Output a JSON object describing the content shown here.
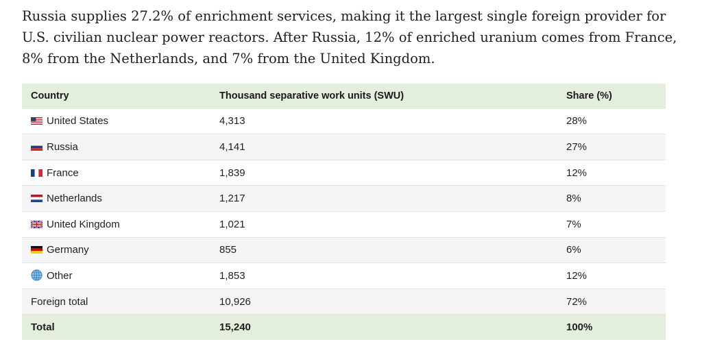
{
  "intro_text": "Russia supplies 27.2% of enrichment services, making it the largest single foreign provider for U.S. civilian nuclear power reactors. After Russia, 12% of enriched uranium comes from France, 8% from the Netherlands, and 7% from the United Kingdom.",
  "table": {
    "headers": [
      "Country",
      "Thousand separative work units (SWU)",
      "Share (%)"
    ],
    "rows": [
      {
        "country": "United States",
        "swu": "4,313",
        "share": "28%",
        "icon": "us-flag-icon"
      },
      {
        "country": "Russia",
        "swu": "4,141",
        "share": "27%",
        "icon": "russia-flag-icon"
      },
      {
        "country": "France",
        "swu": "1,839",
        "share": "12%",
        "icon": "france-flag-icon"
      },
      {
        "country": "Netherlands",
        "swu": "1,217",
        "share": "8%",
        "icon": "netherlands-flag-icon"
      },
      {
        "country": "United Kingdom",
        "swu": "1,021",
        "share": "7%",
        "icon": "uk-flag-icon"
      },
      {
        "country": "Germany",
        "swu": "855",
        "share": "6%",
        "icon": "germany-flag-icon"
      },
      {
        "country": "Other",
        "swu": "1,853",
        "share": "12%",
        "icon": "globe-icon"
      },
      {
        "country": "Foreign total",
        "swu": "10,926",
        "share": "72%",
        "icon": ""
      }
    ],
    "total": {
      "country": "Total",
      "swu": "15,240",
      "share": "100%"
    }
  },
  "colors": {
    "header_background": "#e4eedd",
    "stripe_background": "#f5f5f5"
  }
}
